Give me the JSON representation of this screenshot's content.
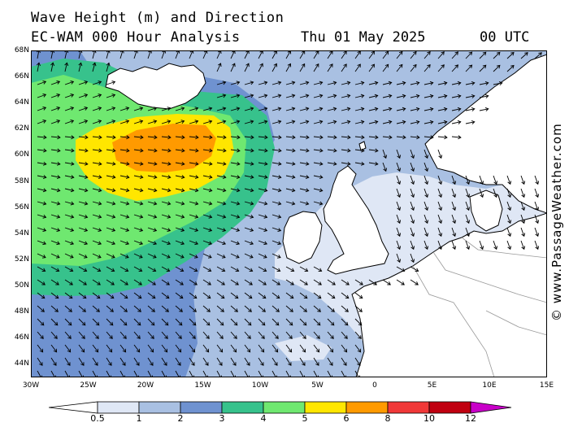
{
  "title": {
    "line1": "Wave Height (m) and Direction",
    "line2": "EC-WAM 000 Hour Analysis",
    "date": "Thu 01 May 2025",
    "utc": "00 UTC"
  },
  "credit": "© www.PassageWeather.com",
  "lat_labels": [
    "68N",
    "66N",
    "64N",
    "62N",
    "60N",
    "58N",
    "56N",
    "54N",
    "52N",
    "50N",
    "48N",
    "46N",
    "44N"
  ],
  "lon_labels": [
    "30W",
    "25W",
    "20W",
    "15W",
    "10W",
    "5W",
    "0",
    "5E",
    "10E",
    "15E"
  ],
  "colorbar": {
    "labels": [
      "0.5",
      "1",
      "2",
      "3",
      "4",
      "5",
      "6",
      "8",
      "10",
      "12"
    ],
    "colors": [
      "#ffffff",
      "#dfe7f5",
      "#a9c0e2",
      "#6f92d0",
      "#37c28c",
      "#6fe870",
      "#ffe600",
      "#ff9a00",
      "#f03838",
      "#c00010",
      "#c800c8"
    ]
  },
  "map": {
    "colors": {
      "land": "#ffffff",
      "c05": "#dfe7f5",
      "c1": "#a9c0e2",
      "c2": "#6f92d0",
      "c3": "#37c28c",
      "c4": "#6fe870",
      "c5": "#ffe600",
      "c6": "#ff9a00",
      "coast": "#000000",
      "border": "#999999",
      "arrow": "#000000"
    }
  }
}
